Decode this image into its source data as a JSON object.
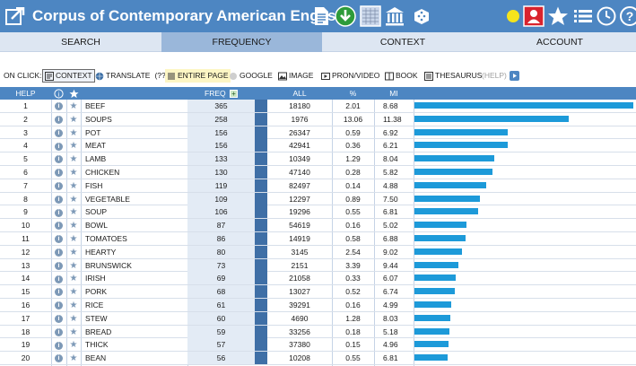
{
  "header": {
    "title": "Corpus of Contemporary American English",
    "icons": [
      "external-link-icon",
      "document-icon",
      "download-icon",
      "grid-icon",
      "museum-icon",
      "dice-icon",
      "yellow-dot-icon",
      "user-icon",
      "star-icon",
      "list-icon",
      "history-icon",
      "help-icon"
    ]
  },
  "nav": {
    "tabs": [
      "SEARCH",
      "FREQUENCY",
      "CONTEXT",
      "ACCOUNT"
    ],
    "active": "FREQUENCY"
  },
  "onclick": {
    "label": "ON CLICK:",
    "items": {
      "context": "CONTEXT",
      "translate": "TRANSLATE",
      "translate_q": "(??)",
      "entire_page": "ENTIRE PAGE",
      "google": "GOOGLE",
      "image": "IMAGE",
      "pron": "PRON/VIDEO",
      "book": "BOOK",
      "thesaurus": "THESAURUS",
      "help": "(HELP)"
    }
  },
  "table": {
    "headers": {
      "help": "HELP",
      "freq": "FREQ",
      "freq_plus": "+",
      "all": "ALL",
      "pct": "%",
      "mi": "MI"
    },
    "rows": [
      {
        "n": "1",
        "word": "BEEF",
        "freq": "365",
        "all": "18180",
        "pct": "2.01",
        "mi": "8.68",
        "bar": 1.0
      },
      {
        "n": "2",
        "word": "SOUPS",
        "freq": "258",
        "all": "1976",
        "pct": "13.06",
        "mi": "11.38",
        "bar": 0.7068
      },
      {
        "n": "3",
        "word": "POT",
        "freq": "156",
        "all": "26347",
        "pct": "0.59",
        "mi": "6.92",
        "bar": 0.4274
      },
      {
        "n": "4",
        "word": "MEAT",
        "freq": "156",
        "all": "42941",
        "pct": "0.36",
        "mi": "6.21",
        "bar": 0.4274
      },
      {
        "n": "5",
        "word": "LAMB",
        "freq": "133",
        "all": "10349",
        "pct": "1.29",
        "mi": "8.04",
        "bar": 0.3644
      },
      {
        "n": "6",
        "word": "CHICKEN",
        "freq": "130",
        "all": "47140",
        "pct": "0.28",
        "mi": "5.82",
        "bar": 0.3562
      },
      {
        "n": "7",
        "word": "FISH",
        "freq": "119",
        "all": "82497",
        "pct": "0.14",
        "mi": "4.88",
        "bar": 0.326
      },
      {
        "n": "8",
        "word": "VEGETABLE",
        "freq": "109",
        "all": "12297",
        "pct": "0.89",
        "mi": "7.50",
        "bar": 0.2986
      },
      {
        "n": "9",
        "word": "SOUP",
        "freq": "106",
        "all": "19296",
        "pct": "0.55",
        "mi": "6.81",
        "bar": 0.2904
      },
      {
        "n": "10",
        "word": "BOWL",
        "freq": "87",
        "all": "54619",
        "pct": "0.16",
        "mi": "5.02",
        "bar": 0.2384
      },
      {
        "n": "11",
        "word": "TOMATOES",
        "freq": "86",
        "all": "14919",
        "pct": "0.58",
        "mi": "6.88",
        "bar": 0.2356
      },
      {
        "n": "12",
        "word": "HEARTY",
        "freq": "80",
        "all": "3145",
        "pct": "2.54",
        "pct_note": "",
        "mi": "9.02",
        "bar": 0.2192
      },
      {
        "n": "13",
        "word": "BRUNSWICK",
        "freq": "73",
        "all": "2151",
        "pct": "3.39",
        "mi": "9.44",
        "bar": 0.2
      },
      {
        "n": "14",
        "word": "IRISH",
        "freq": "69",
        "all": "21058",
        "pct": "0.33",
        "mi": "6.07",
        "bar": 0.189
      },
      {
        "n": "15",
        "word": "PORK",
        "freq": "68",
        "all": "13027",
        "pct": "0.52",
        "mi": "6.74",
        "bar": 0.1863
      },
      {
        "n": "16",
        "word": "RICE",
        "freq": "61",
        "all": "39291",
        "pct": "0.16",
        "mi": "4.99",
        "bar": 0.1671
      },
      {
        "n": "17",
        "word": "STEW",
        "freq": "60",
        "all": "4690",
        "pct": "1.28",
        "mi": "8.03",
        "bar": 0.1644
      },
      {
        "n": "18",
        "word": "BREAD",
        "freq": "59",
        "all": "33256",
        "pct": "0.18",
        "mi": "5.18",
        "bar": 0.1616
      },
      {
        "n": "19",
        "word": "THICK",
        "freq": "57",
        "all": "37380",
        "pct": "0.15",
        "mi": "4.96",
        "bar": 0.1562
      },
      {
        "n": "20",
        "word": "BEAN",
        "freq": "56",
        "all": "10208",
        "pct": "0.55",
        "mi": "6.81",
        "bar": 0.1534
      }
    ]
  },
  "colors": {
    "header_bg": "#4d86c2",
    "bar": "#1d9ad9",
    "freq_col": "#e3ebf5",
    "active_tab": "#9ab7da"
  }
}
